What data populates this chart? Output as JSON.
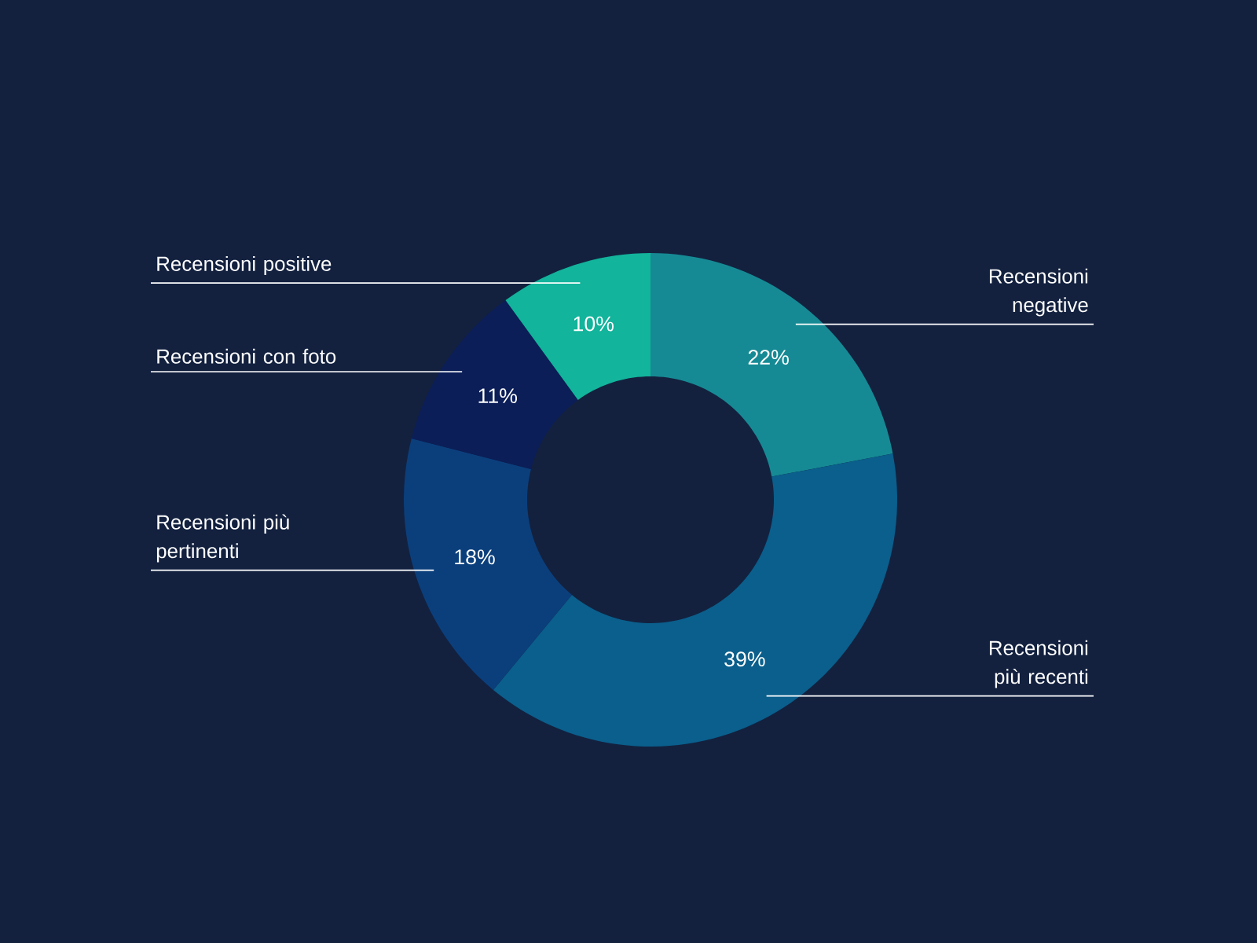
{
  "chart_data": {
    "type": "donut",
    "categories": [
      "Recensioni negative",
      "Recensioni più recenti",
      "Recensioni più pertinenti",
      "Recensioni con foto",
      "Recensioni positive"
    ],
    "values": [
      22,
      39,
      18,
      11,
      10
    ],
    "value_labels": [
      "22%",
      "39%",
      "18%",
      "11%",
      "10%"
    ],
    "colors": [
      "#168a94",
      "#0a5f8c",
      "#0b3f7c",
      "#0b1e58",
      "#12b49b"
    ]
  }
}
